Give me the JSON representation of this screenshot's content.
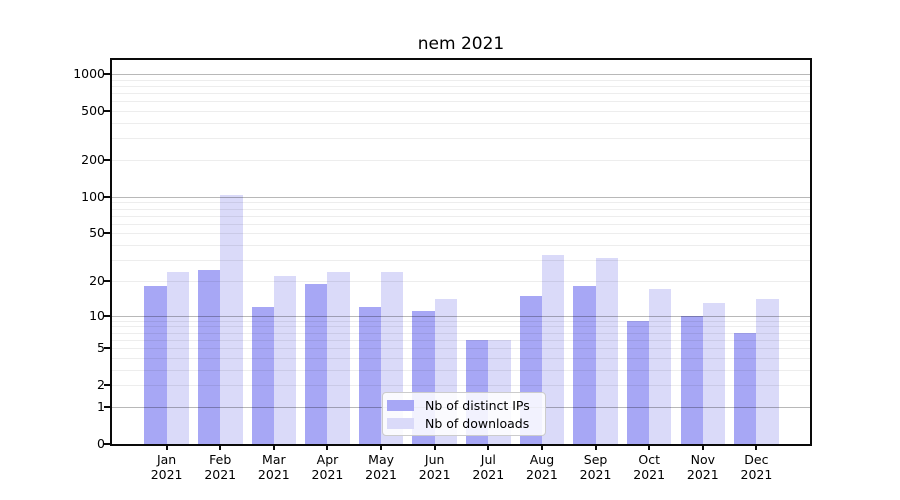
{
  "chart_data": {
    "type": "bar",
    "title": "nem 2021",
    "categories": [
      "Jan",
      "Feb",
      "Mar",
      "Apr",
      "May",
      "Jun",
      "Jul",
      "Aug",
      "Sep",
      "Oct",
      "Nov",
      "Dec"
    ],
    "category_year": "2021",
    "series": [
      {
        "name": "Nb of distinct IPs",
        "color": "#a7a7f5",
        "values": [
          18,
          25,
          12,
          19,
          12,
          11,
          6,
          15,
          18,
          9,
          10,
          7
        ]
      },
      {
        "name": "Nb of downloads",
        "color": "#dadaf9",
        "values": [
          24,
          103,
          22,
          24,
          24,
          14,
          6,
          33,
          31,
          17,
          13,
          14
        ]
      }
    ],
    "yscale": "log10(value+1)",
    "yticks": [
      0,
      1,
      2,
      5,
      10,
      20,
      50,
      100,
      200,
      500,
      1000
    ],
    "ytick_major": [
      1,
      10,
      100,
      1000
    ],
    "ytick_minor": [
      2,
      3,
      4,
      5,
      6,
      7,
      8,
      9,
      20,
      30,
      40,
      50,
      60,
      70,
      80,
      90,
      200,
      300,
      400,
      500,
      600,
      700,
      800,
      900
    ],
    "ylim": [
      0,
      1300
    ],
    "xlabel": "",
    "ylabel": "",
    "grid": true,
    "legend_position": "lower-center"
  },
  "colors": {
    "background": "#ffffff",
    "spine": "#0a0a0a",
    "major_grid": "#b8b8b8",
    "minor_grid": "#ededed",
    "legend_border": "#cccccc"
  }
}
